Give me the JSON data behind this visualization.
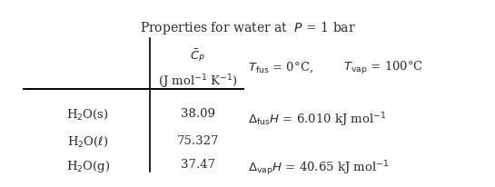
{
  "title": "Properties for water at  $P$ = 1 bar",
  "col_header_line1": "$\\bar{C}_P$",
  "col_header_line2": "(J mol$^{-1}$ K$^{-1}$)",
  "row_labels": [
    "H$_2$O(s)",
    "H$_2$O($\\ell$)",
    "H$_2$O(g)"
  ],
  "values": [
    "38.09",
    "75.327",
    "37.47"
  ],
  "t_fus": "$T_{\\mathrm{fus}}$ = 0°C,",
  "t_vap": "$T_{\\mathrm{vap}}$ = 100°C",
  "delta_fus": "$\\Delta_{\\mathrm{fus}}H$ = 6.010 kJ mol$^{-1}$",
  "delta_vap": "$\\Delta_{\\mathrm{vap}}H$ = 40.65 kJ mol$^{-1}$",
  "bg_color": "#ffffff",
  "text_color": "#2b2b2b",
  "fontsize": 9.5
}
